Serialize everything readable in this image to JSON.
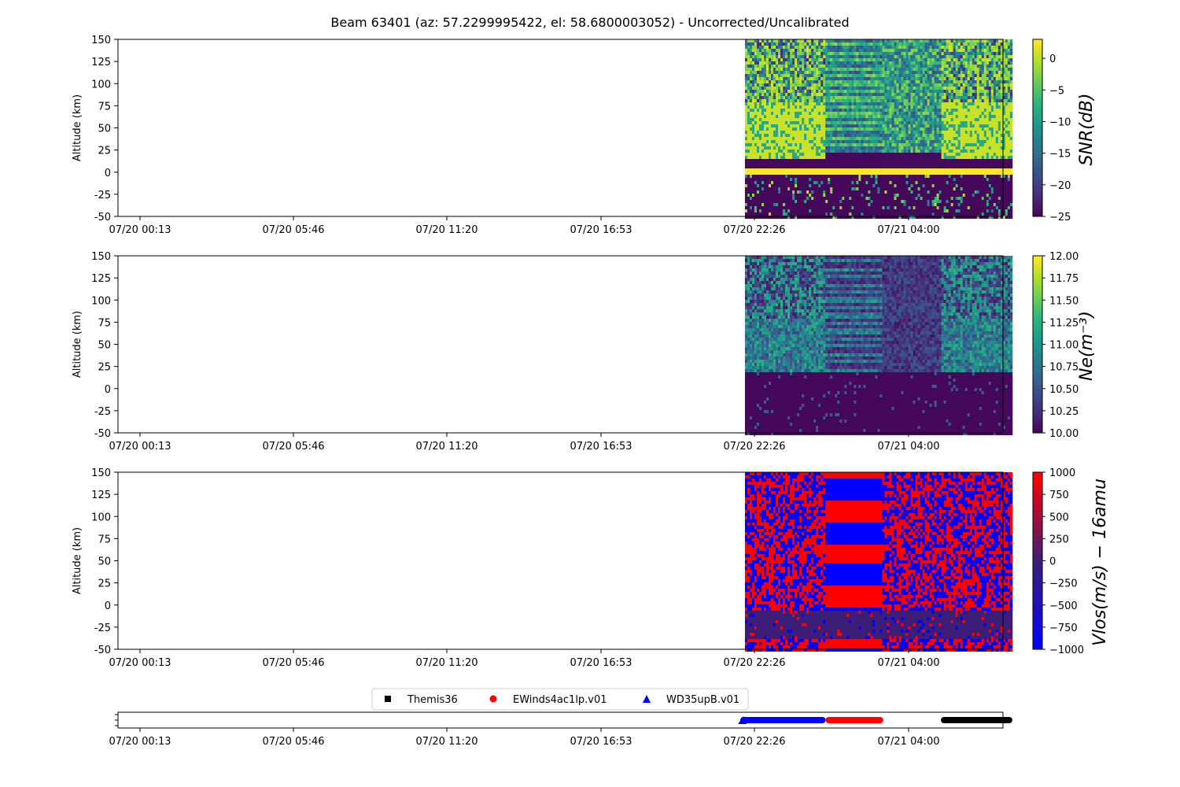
{
  "title": "Beam 63401 (az: 57.2299995422, el: 58.6800003052) - Uncorrected/Uncalibrated",
  "chart_data": {
    "type": "heatmap",
    "x_tick_labels": [
      "07/20 00:13",
      "07/20 05:46",
      "07/20 11:20",
      "07/20 16:53",
      "07/20 22:26",
      "07/21 04:00"
    ],
    "x_range": [
      "07/20 00:13",
      "07/21 08:10"
    ],
    "data_extent": [
      "07/20 22:05",
      "07/21 07:45"
    ],
    "panels": [
      {
        "id": "snr",
        "ylabel": "Altitude (km)",
        "ylim": [
          -50,
          150
        ],
        "yticks": [
          -50,
          -25,
          0,
          25,
          50,
          75,
          100,
          125,
          150
        ],
        "colorbar": {
          "label": "SNR(dB)",
          "colormap": "viridis",
          "range": [
            -25,
            3
          ],
          "ticks": [
            0,
            -5,
            -10,
            -15,
            -20,
            -25
          ]
        }
      },
      {
        "id": "ne",
        "ylabel": "Altitude (km)",
        "ylim": [
          -50,
          150
        ],
        "yticks": [
          -50,
          -25,
          0,
          25,
          50,
          75,
          100,
          125,
          150
        ],
        "colorbar": {
          "label": "Ne(m⁻³)",
          "colormap": "viridis",
          "range": [
            10.0,
            12.0
          ],
          "ticks": [
            "12.00",
            "11.75",
            "11.50",
            "11.25",
            "11.00",
            "10.75",
            "10.50",
            "10.25",
            "10.00"
          ]
        }
      },
      {
        "id": "vlos",
        "ylabel": "Altitude (km)",
        "ylim": [
          -50,
          150
        ],
        "yticks": [
          -50,
          -25,
          0,
          25,
          50,
          75,
          100,
          125,
          150
        ],
        "colorbar": {
          "label": "Vlos(m/s) − 16amu",
          "colormap": "bwr-dark",
          "range": [
            -1000,
            1000
          ],
          "ticks": [
            1000,
            750,
            500,
            250,
            0,
            -250,
            -500,
            -750,
            -1000
          ]
        }
      }
    ],
    "mode_timeline": {
      "legend": [
        {
          "name": "Themis36",
          "marker": "square",
          "color": "#000000"
        },
        {
          "name": "EWinds4ac1lp.v01",
          "marker": "circle",
          "color": "#ff0000"
        },
        {
          "name": "WD35upB.v01",
          "marker": "triangle",
          "color": "#0000ff"
        }
      ],
      "segments": [
        {
          "name": "WD35upB.v01",
          "start": "07/20 21:55",
          "end": "07/21 01:00"
        },
        {
          "name": "EWinds4ac1lp.v01",
          "start": "07/21 01:00",
          "end": "07/21 03:05"
        },
        {
          "name": "Themis36",
          "start": "07/21 05:10",
          "end": "07/21 07:45"
        }
      ]
    }
  }
}
